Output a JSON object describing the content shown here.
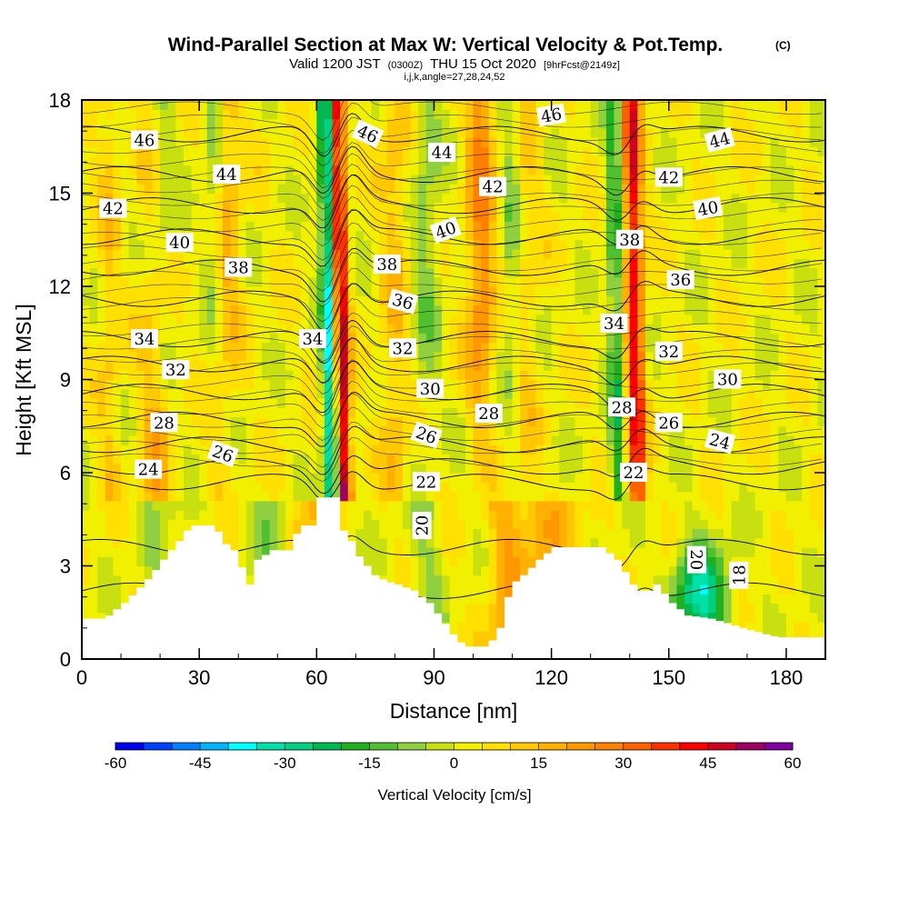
{
  "header": {
    "title": "Wind-Parallel Section at Max W: Vertical Velocity & Pot.Temp.",
    "title_mark": "(C)",
    "valid_prefix": "Valid 1200 JST",
    "valid_utc": "(0300Z)",
    "valid_date": "THU 15 Oct 2020",
    "forecast": "[9hrFcst@2149z]",
    "indices": "i,j,k,angle=27,28,24,52"
  },
  "chart_data": {
    "type": "heatmap",
    "xlabel": "Distance [nm]",
    "ylabel": "Height [Kft MSL]",
    "xlim": [
      0,
      190
    ],
    "ylim": [
      0,
      18
    ],
    "x_ticks": [
      "0",
      "30",
      "60",
      "90",
      "120",
      "150",
      "180"
    ],
    "y_ticks": [
      "0",
      "3",
      "6",
      "9",
      "12",
      "15",
      "18"
    ],
    "field": "Vertical Velocity",
    "colorbar": {
      "title": "Vertical Velocity [cm/s]",
      "tick_labels": [
        "-60",
        "-45",
        "-30",
        "-15",
        "0",
        "15",
        "30",
        "45",
        "60"
      ],
      "min": -60,
      "max": 60,
      "step": 5,
      "colors": [
        "#0000f0",
        "#0040ff",
        "#0080ff",
        "#00b4ff",
        "#00ffff",
        "#00e0a8",
        "#00d080",
        "#00b850",
        "#20b020",
        "#50c030",
        "#90d040",
        "#c8e010",
        "#f0f000",
        "#ffe000",
        "#ffc800",
        "#ffb000",
        "#ff9800",
        "#ff8000",
        "#ff6000",
        "#ff3000",
        "#ff0000",
        "#d00020",
        "#a00060",
        "#8000a0"
      ]
    },
    "updraft_bands_x": [
      7,
      18,
      37,
      67,
      80,
      102,
      113,
      142
    ],
    "downdraft_bands_x": [
      20,
      34,
      64,
      88,
      110,
      137
    ],
    "terrain": [
      [
        0,
        1.3
      ],
      [
        5,
        1.3
      ],
      [
        10,
        1.8
      ],
      [
        14,
        2.3
      ],
      [
        17,
        2.7
      ],
      [
        20,
        3.2
      ],
      [
        24,
        3.8
      ],
      [
        27,
        4.3
      ],
      [
        33,
        4.3
      ],
      [
        36,
        3.7
      ],
      [
        38,
        3.5
      ],
      [
        42,
        2.4
      ],
      [
        44,
        3.2
      ],
      [
        48,
        3.5
      ],
      [
        52,
        3.5
      ],
      [
        55,
        4.3
      ],
      [
        58,
        4.3
      ],
      [
        58.5,
        5.2
      ],
      [
        64,
        5.2
      ],
      [
        65,
        4.3
      ],
      [
        68,
        3.8
      ],
      [
        70,
        3.3
      ],
      [
        74,
        2.7
      ],
      [
        77,
        2.5
      ],
      [
        80,
        2.4
      ],
      [
        84,
        2.2
      ],
      [
        88,
        1.8
      ],
      [
        91,
        1.3
      ],
      [
        94,
        0.8
      ],
      [
        97,
        0.4
      ],
      [
        103,
        0.4
      ],
      [
        106,
        1.0
      ],
      [
        108,
        2.0
      ],
      [
        110,
        2.5
      ],
      [
        113,
        2.8
      ],
      [
        116,
        3.2
      ],
      [
        120,
        3.6
      ],
      [
        132,
        3.6
      ],
      [
        136,
        3.2
      ],
      [
        140,
        2.4
      ],
      [
        143,
        2.1
      ],
      [
        146,
        2.4
      ],
      [
        150,
        1.8
      ],
      [
        154,
        1.4
      ],
      [
        160,
        1.3
      ],
      [
        168,
        1.0
      ],
      [
        174,
        0.8
      ],
      [
        177,
        0.7
      ],
      [
        190,
        0.7
      ]
    ],
    "theta_contours": [
      {
        "value": "18",
        "y": 2.2
      },
      {
        "value": "20",
        "y": 3.6
      },
      {
        "value": "22",
        "y": 5.7
      },
      {
        "value": "24",
        "y": 6.2
      },
      {
        "value": "26",
        "y": 6.9
      },
      {
        "value": "28",
        "y": 7.7
      },
      {
        "value": "30",
        "y": 8.6
      },
      {
        "value": "32",
        "y": 9.5
      },
      {
        "value": "34",
        "y": 10.3
      },
      {
        "value": "36",
        "y": 11.6
      },
      {
        "value": "38",
        "y": 12.6
      },
      {
        "value": "40",
        "y": 13.6
      },
      {
        "value": "42",
        "y": 14.6
      },
      {
        "value": "44",
        "y": 15.6
      },
      {
        "value": "46",
        "y": 16.9
      }
    ],
    "contour_labels": [
      {
        "text": "46",
        "x": 16,
        "y": 16.7,
        "rot": 0
      },
      {
        "text": "44",
        "x": 37,
        "y": 15.6,
        "rot": 0
      },
      {
        "text": "42",
        "x": 8,
        "y": 14.5,
        "rot": 0
      },
      {
        "text": "40",
        "x": 25,
        "y": 13.4,
        "rot": 0
      },
      {
        "text": "38",
        "x": 40,
        "y": 12.6,
        "rot": 0
      },
      {
        "text": "34",
        "x": 16,
        "y": 10.3,
        "rot": 0
      },
      {
        "text": "32",
        "x": 24,
        "y": 9.3,
        "rot": 0
      },
      {
        "text": "28",
        "x": 21,
        "y": 7.6,
        "rot": 0
      },
      {
        "text": "26",
        "x": 36,
        "y": 6.6,
        "rot": 20
      },
      {
        "text": "24",
        "x": 17,
        "y": 6.1,
        "rot": 0
      },
      {
        "text": "34",
        "x": 59,
        "y": 10.3,
        "rot": 0
      },
      {
        "text": "46",
        "x": 73,
        "y": 16.9,
        "rot": 25
      },
      {
        "text": "38",
        "x": 78,
        "y": 12.7,
        "rot": 0
      },
      {
        "text": "36",
        "x": 82,
        "y": 11.5,
        "rot": 15
      },
      {
        "text": "32",
        "x": 82,
        "y": 10.0,
        "rot": 0
      },
      {
        "text": "40",
        "x": 93,
        "y": 13.8,
        "rot": -20
      },
      {
        "text": "44",
        "x": 92,
        "y": 16.3,
        "rot": 0
      },
      {
        "text": "42",
        "x": 105,
        "y": 15.2,
        "rot": 0
      },
      {
        "text": "30",
        "x": 89,
        "y": 8.7,
        "rot": 0
      },
      {
        "text": "26",
        "x": 88,
        "y": 7.2,
        "rot": 20
      },
      {
        "text": "22",
        "x": 88,
        "y": 5.7,
        "rot": 0
      },
      {
        "text": "20",
        "x": 87,
        "y": 4.3,
        "rot": -90
      },
      {
        "text": "28",
        "x": 104,
        "y": 7.9,
        "rot": 0
      },
      {
        "text": "46",
        "x": 120,
        "y": 17.5,
        "rot": -10
      },
      {
        "text": "38",
        "x": 140,
        "y": 13.5,
        "rot": 0
      },
      {
        "text": "34",
        "x": 136,
        "y": 10.8,
        "rot": 0
      },
      {
        "text": "28",
        "x": 138,
        "y": 8.1,
        "rot": 0
      },
      {
        "text": "22",
        "x": 141,
        "y": 6.0,
        "rot": 0
      },
      {
        "text": "42",
        "x": 150,
        "y": 15.5,
        "rot": 0
      },
      {
        "text": "36",
        "x": 153,
        "y": 12.2,
        "rot": 0
      },
      {
        "text": "32",
        "x": 150,
        "y": 9.9,
        "rot": 0
      },
      {
        "text": "26",
        "x": 150,
        "y": 7.6,
        "rot": 0
      },
      {
        "text": "44",
        "x": 163,
        "y": 16.7,
        "rot": -15
      },
      {
        "text": "40",
        "x": 160,
        "y": 14.5,
        "rot": -10
      },
      {
        "text": "30",
        "x": 165,
        "y": 9.0,
        "rot": 0
      },
      {
        "text": "24",
        "x": 163,
        "y": 7.0,
        "rot": 15
      },
      {
        "text": "20",
        "x": 157,
        "y": 3.2,
        "rot": 90
      },
      {
        "text": "18",
        "x": 168,
        "y": 2.7,
        "rot": -90
      }
    ]
  }
}
